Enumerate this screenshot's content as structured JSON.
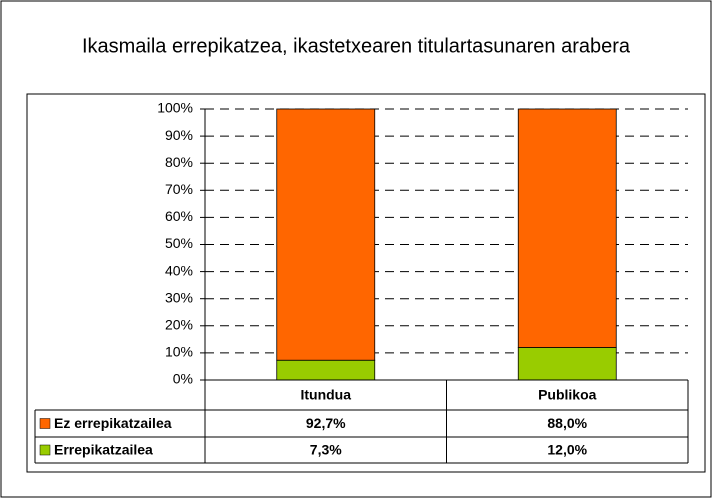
{
  "chart_data": {
    "type": "stacked_bar",
    "title": "Ikasmaila errepikatzea, ikastetxearen titulartasunaren arabera",
    "categories": [
      "Itundua",
      "Publikoa"
    ],
    "series": [
      {
        "name": "Errepikatzailea",
        "color": "#99cc00",
        "values": [
          7.3,
          12.0
        ],
        "value_labels": [
          "7,3%",
          "12,0%"
        ]
      },
      {
        "name": "Ez errepikatzailea",
        "color": "#ff6600",
        "values": [
          92.7,
          88.0
        ],
        "value_labels": [
          "92,7%",
          "88,0%"
        ]
      }
    ],
    "ylim": [
      0,
      100
    ],
    "yticks": [
      {
        "value": 0,
        "label": "0%"
      },
      {
        "value": 10,
        "label": "10%"
      },
      {
        "value": 20,
        "label": "20%"
      },
      {
        "value": 30,
        "label": "30%"
      },
      {
        "value": 40,
        "label": "40%"
      },
      {
        "value": 50,
        "label": "50%"
      },
      {
        "value": 60,
        "label": "60%"
      },
      {
        "value": 70,
        "label": "70%"
      },
      {
        "value": 80,
        "label": "80%"
      },
      {
        "value": 90,
        "label": "90%"
      },
      {
        "value": 100,
        "label": "100%"
      }
    ],
    "grid": true
  }
}
